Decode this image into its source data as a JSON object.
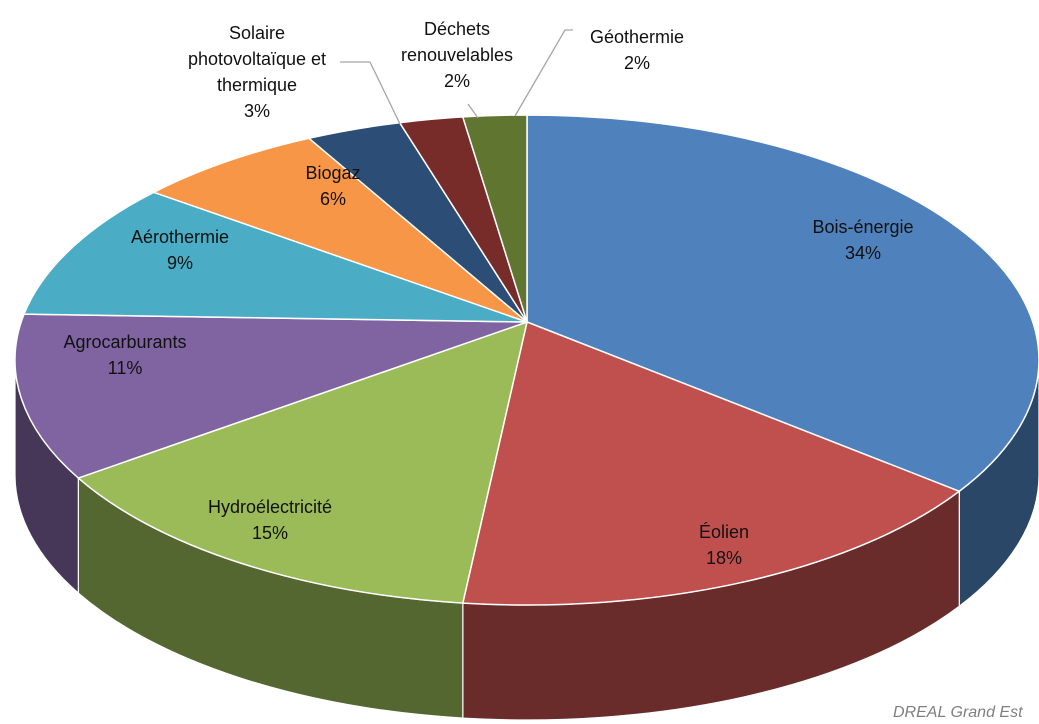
{
  "chart_data": {
    "type": "pie3d",
    "categories": [
      "Bois-énergie",
      "Éolien",
      "Hydroélectricité",
      "Agrocarburants",
      "Aérothermie",
      "Biogaz",
      "Solaire\nphotovoltaïque et\nthermique",
      "Déchets\nrenouvelables",
      "Géothermie"
    ],
    "values": [
      34,
      18,
      15,
      11,
      9,
      6,
      3,
      2,
      2
    ],
    "value_labels": [
      "34%",
      "18%",
      "15%",
      "11%",
      "9%",
      "6%",
      "3%",
      "2%",
      "2%"
    ],
    "colors": [
      "#4f81bd",
      "#c0504d",
      "#9bbb59",
      "#8064a2",
      "#4bacc6",
      "#f79646",
      "#2c4d75",
      "#772c2a",
      "#5f7530"
    ],
    "source": "DREAL Grand Est"
  }
}
